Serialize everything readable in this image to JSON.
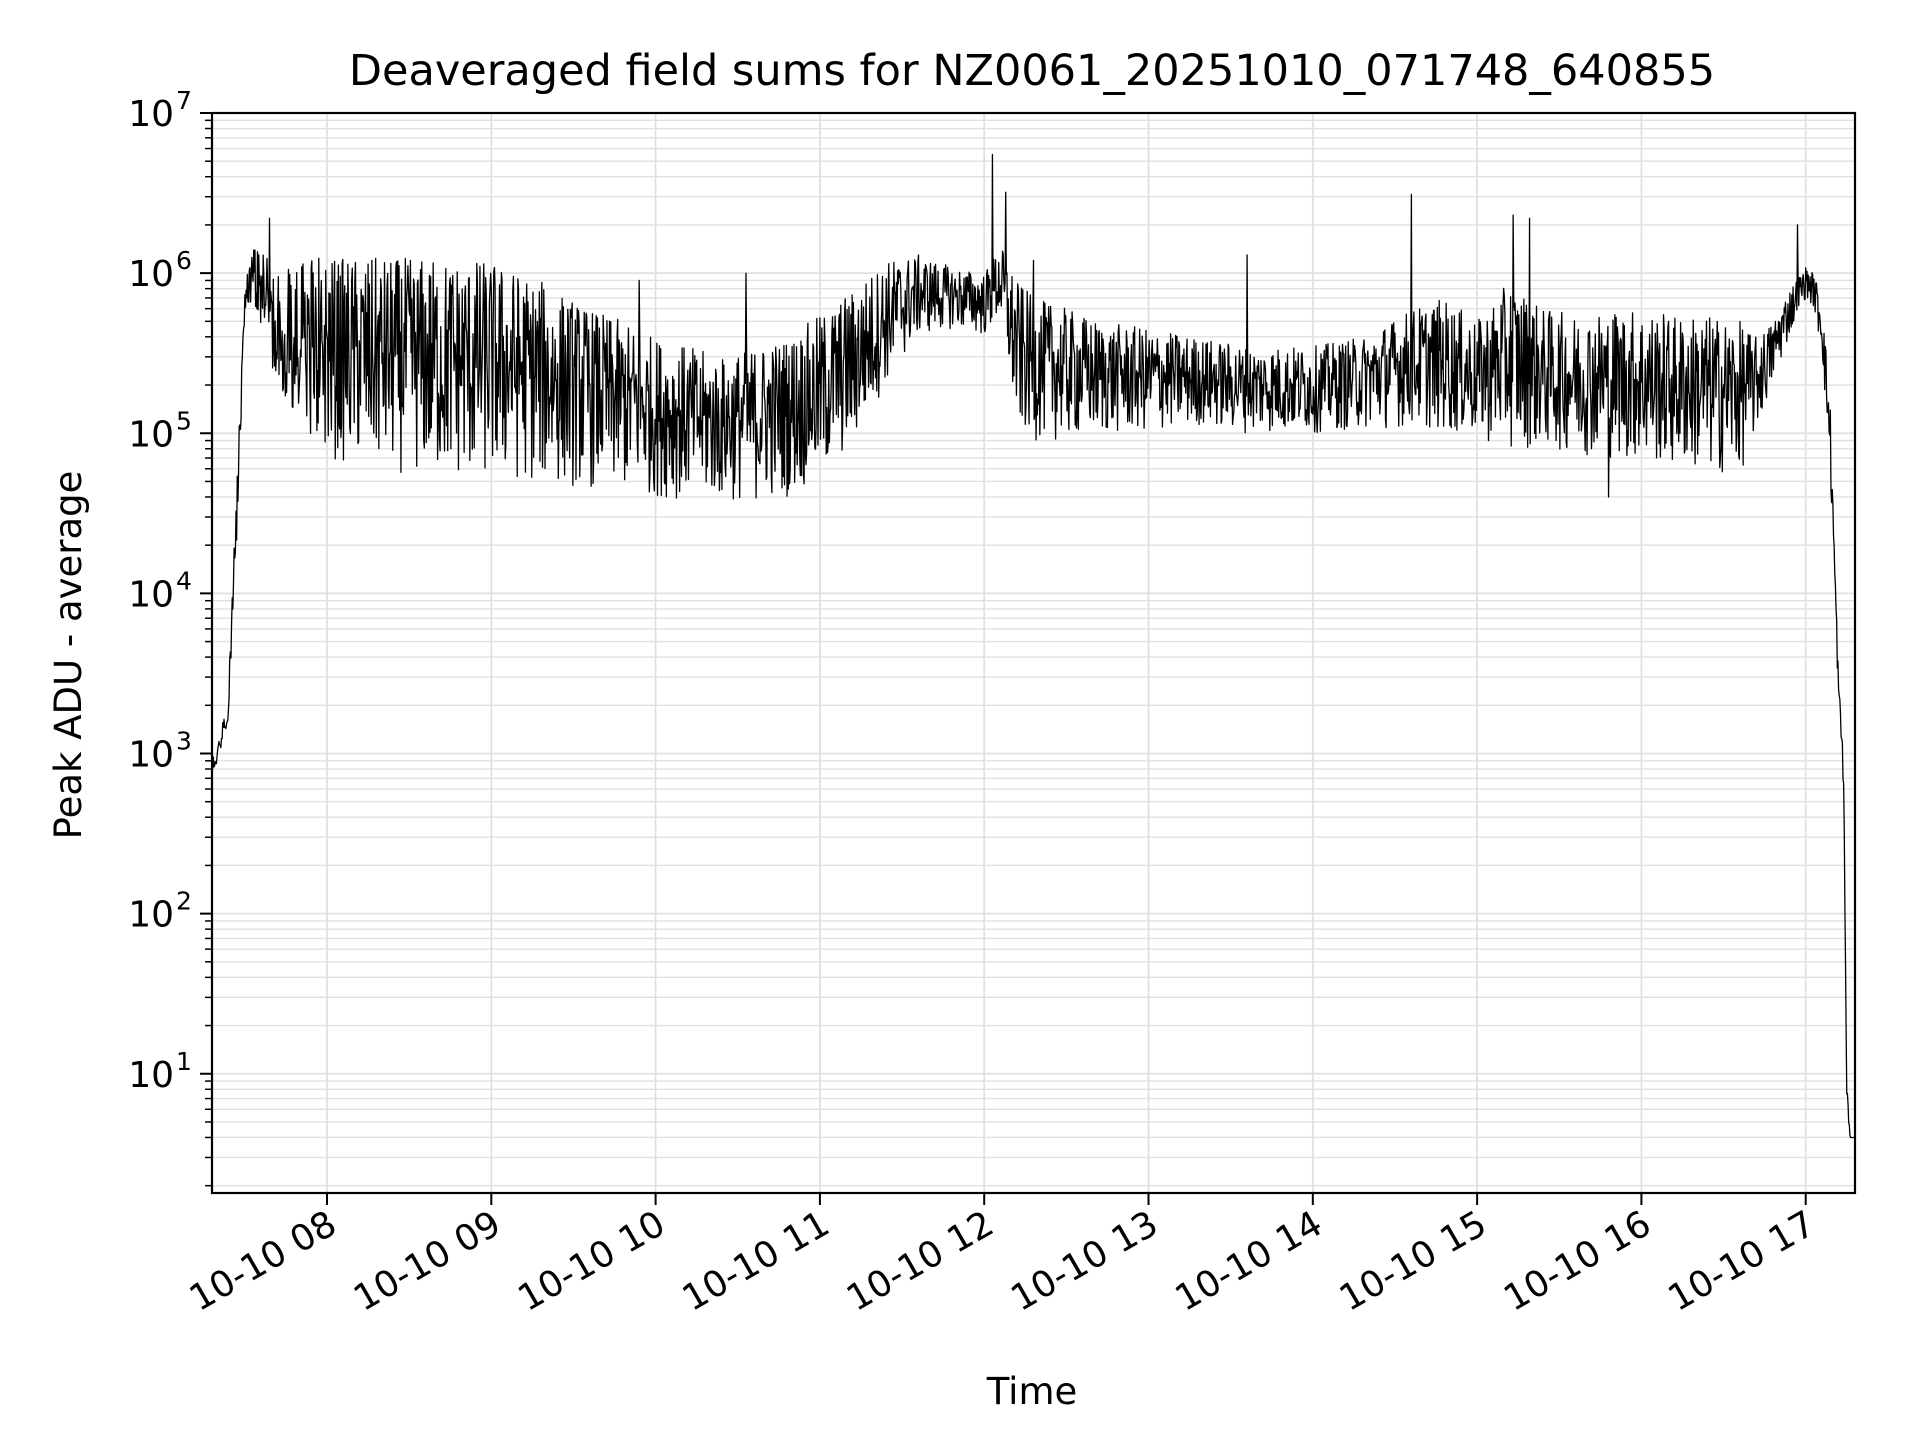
{
  "chart_data": {
    "type": "line",
    "title": "Deaveraged field sums for NZ0061_20251010_071748_640855",
    "xlabel": "Time",
    "ylabel": "Peak ADU - average",
    "yscale": "log",
    "ylim": [
      1.8,
      10000000
    ],
    "xlim_hours": [
      7.3,
      17.3
    ],
    "grid": true,
    "line_color": "#000000",
    "grid_color": "#e0e0e0",
    "x_ticks": [
      {
        "hour": 8,
        "label": "10-10 08"
      },
      {
        "hour": 9,
        "label": "10-10 09"
      },
      {
        "hour": 10,
        "label": "10-10 10"
      },
      {
        "hour": 11,
        "label": "10-10 11"
      },
      {
        "hour": 12,
        "label": "10-10 12"
      },
      {
        "hour": 13,
        "label": "10-10 13"
      },
      {
        "hour": 14,
        "label": "10-10 14"
      },
      {
        "hour": 15,
        "label": "10-10 15"
      },
      {
        "hour": 16,
        "label": "10-10 16"
      },
      {
        "hour": 17,
        "label": "10-10 17"
      }
    ],
    "y_ticks": [
      {
        "value": 10,
        "base": "10",
        "exp": "1"
      },
      {
        "value": 100,
        "base": "10",
        "exp": "2"
      },
      {
        "value": 1000,
        "base": "10",
        "exp": "3"
      },
      {
        "value": 10000,
        "base": "10",
        "exp": "4"
      },
      {
        "value": 100000,
        "base": "10",
        "exp": "5"
      },
      {
        "value": 1000000,
        "base": "10",
        "exp": "6"
      },
      {
        "value": 10000000,
        "base": "10",
        "exp": "7"
      }
    ],
    "series": [
      {
        "name": "field sums",
        "envelope": {
          "hours": [
            7.3,
            7.35,
            7.4,
            7.45,
            7.5,
            7.55,
            7.6,
            7.7,
            7.8,
            8.0,
            8.2,
            8.5,
            8.8,
            9.0,
            9.3,
            9.6,
            9.8,
            10.0,
            10.2,
            10.4,
            10.6,
            10.8,
            11.0,
            11.2,
            11.4,
            11.6,
            11.8,
            12.0,
            12.1,
            12.2,
            12.3,
            12.5,
            12.7,
            13.0,
            13.3,
            13.6,
            14.0,
            14.3,
            14.6,
            14.8,
            15.0,
            15.2,
            15.4,
            15.6,
            15.8,
            16.0,
            16.2,
            16.4,
            16.6,
            16.7,
            16.8,
            16.9,
            17.0,
            17.05,
            17.1,
            17.15,
            17.2,
            17.23,
            17.25,
            17.27,
            17.3
          ],
          "high": [
            900,
            1300,
            2500,
            50000,
            900000,
            1500000,
            1400000,
            1200000,
            1250000,
            1250000,
            1250000,
            1250000,
            1250000,
            1200000,
            900000,
            600000,
            500000,
            400000,
            350000,
            300000,
            350000,
            400000,
            550000,
            800000,
            1200000,
            1300000,
            1100000,
            1000000,
            1500000,
            900000,
            700000,
            600000,
            500000,
            450000,
            400000,
            350000,
            350000,
            400000,
            600000,
            700000,
            500000,
            900000,
            600000,
            550000,
            600000,
            600000,
            550000,
            550000,
            500000,
            400000,
            500000,
            800000,
            1100000,
            1000000,
            700000,
            150000,
            3000,
            1000,
            10,
            4,
            4
          ],
          "low": [
            700,
            1000,
            1500,
            20000,
            500000,
            700000,
            400000,
            150000,
            110000,
            70000,
            60000,
            55000,
            50000,
            50000,
            48000,
            45000,
            43000,
            40000,
            38000,
            37000,
            37000,
            40000,
            50000,
            80000,
            200000,
            400000,
            450000,
            400000,
            500000,
            100000,
            90000,
            90000,
            95000,
            100000,
            110000,
            100000,
            100000,
            105000,
            110000,
            100000,
            90000,
            80000,
            80000,
            75000,
            70000,
            65000,
            60000,
            55000,
            55000,
            100000,
            200000,
            400000,
            700000,
            600000,
            300000,
            50000,
            2000,
            600,
            6,
            4,
            4
          ]
        },
        "spikes": [
          {
            "hour": 7.65,
            "value": 2200000
          },
          {
            "hour": 9.9,
            "value": 900000
          },
          {
            "hour": 10.55,
            "value": 1000000
          },
          {
            "hour": 12.05,
            "value": 5500000
          },
          {
            "hour": 12.13,
            "value": 3200000
          },
          {
            "hour": 12.3,
            "value": 1200000
          },
          {
            "hour": 13.6,
            "value": 1300000
          },
          {
            "hour": 14.6,
            "value": 3100000
          },
          {
            "hour": 15.22,
            "value": 2300000
          },
          {
            "hour": 15.32,
            "value": 2200000
          },
          {
            "hour": 15.8,
            "value": 40000
          },
          {
            "hour": 16.95,
            "value": 2000000
          }
        ],
        "samples": 2600,
        "seed": 61
      }
    ]
  }
}
